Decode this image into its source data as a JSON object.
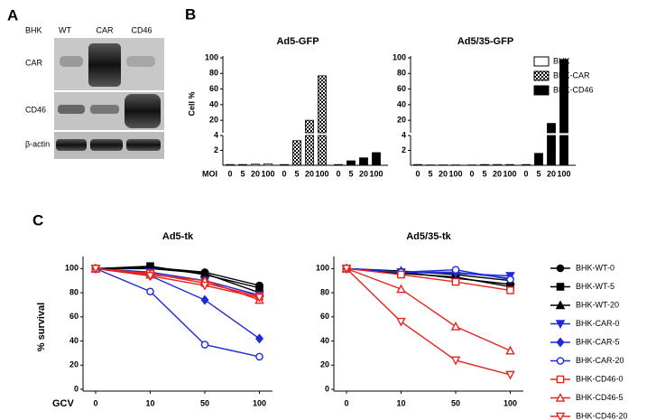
{
  "panel_labels": [
    "A",
    "B",
    "C"
  ],
  "blot": {
    "cell_label": "BHK",
    "lanes": [
      "WT",
      "CAR",
      "CD46"
    ],
    "rows": [
      "CAR",
      "CD46",
      "β-actin"
    ]
  },
  "chart_data": [
    {
      "type": "bar",
      "titles": [
        "Ad5-GFP",
        "Ad5/35-GFP"
      ],
      "y_label": "Cell %",
      "x_label": "MOI",
      "categories": [
        "0",
        "5",
        "20",
        "100"
      ],
      "ylim": [
        0,
        4
      ],
      "yticks": [
        2,
        4
      ],
      "ylim_upper": [
        4,
        100
      ],
      "yticks_upper": [
        20,
        40,
        60,
        80,
        100
      ],
      "series": [
        {
          "name": "BHK",
          "fill": "open",
          "values": [
            [
              0.1,
              0.1,
              0.15,
              0.2
            ],
            [
              0.1,
              0.05,
              0.05,
              0.05
            ]
          ]
        },
        {
          "name": "BHK-CAR",
          "fill": "checker",
          "values": [
            [
              0.1,
              3.3,
              20,
              77
            ],
            [
              0.05,
              0.1,
              0.1,
              0.1
            ]
          ]
        },
        {
          "name": "BHK-CD46",
          "fill": "solid",
          "values": [
            [
              0.1,
              0.6,
              1.0,
              1.7
            ],
            [
              0.1,
              1.6,
              16,
              98
            ]
          ]
        }
      ]
    },
    {
      "type": "line",
      "titles": [
        "Ad5-tk",
        "Ad5/35-tk"
      ],
      "y_label": "% survival",
      "x_label": "GCV",
      "categories": [
        "0",
        "10",
        "50",
        "100"
      ],
      "ylim": [
        0,
        110
      ],
      "yticks": [
        0,
        20,
        40,
        60,
        80,
        100
      ],
      "series": [
        {
          "name": "BHK-WT-0",
          "color": "#000000",
          "marker": "circle",
          "open": false,
          "values": [
            [
              100,
              101,
              97,
              86
            ],
            [
              100,
              97,
              92,
              87
            ]
          ]
        },
        {
          "name": "BHK-WT-5",
          "color": "#000000",
          "marker": "square",
          "open": false,
          "values": [
            [
              100,
              102,
              95,
              84
            ],
            [
              100,
              96,
              93,
              85
            ]
          ]
        },
        {
          "name": "BHK-WT-20",
          "color": "#000000",
          "marker": "triangle-up",
          "open": false,
          "values": [
            [
              100,
              100,
              96,
              80
            ],
            [
              100,
              98,
              95,
              90
            ]
          ]
        },
        {
          "name": "BHK-CAR-0",
          "color": "#1f2bd6",
          "marker": "triangle-down",
          "open": false,
          "values": [
            [
              100,
              97,
              90,
              78
            ],
            [
              100,
              97,
              96,
              94
            ]
          ]
        },
        {
          "name": "BHK-CAR-5",
          "color": "#1f2bd6",
          "marker": "diamond",
          "open": false,
          "values": [
            [
              100,
              94,
              74,
              42
            ],
            [
              100,
              97,
              97,
              92
            ]
          ]
        },
        {
          "name": "BHK-CAR-20",
          "color": "#1f2bd6",
          "marker": "circle",
          "open": true,
          "values": [
            [
              100,
              81,
              37,
              27
            ],
            [
              100,
              97,
              99,
              91
            ]
          ]
        },
        {
          "name": "BHK-CD46-0",
          "color": "#e8231e",
          "marker": "square",
          "open": true,
          "values": [
            [
              100,
              96,
              88,
              77
            ],
            [
              100,
              95,
              89,
              82
            ]
          ]
        },
        {
          "name": "BHK-CD46-5",
          "color": "#e8231e",
          "marker": "triangle-up",
          "open": true,
          "values": [
            [
              100,
              95,
              90,
              74
            ],
            [
              100,
              83,
              52,
              32
            ]
          ]
        },
        {
          "name": "BHK-CD46-20",
          "color": "#e8231e",
          "marker": "triangle-down",
          "open": true,
          "values": [
            [
              100,
              94,
              86,
              76
            ],
            [
              100,
              56,
              24,
              12
            ]
          ]
        }
      ]
    }
  ]
}
